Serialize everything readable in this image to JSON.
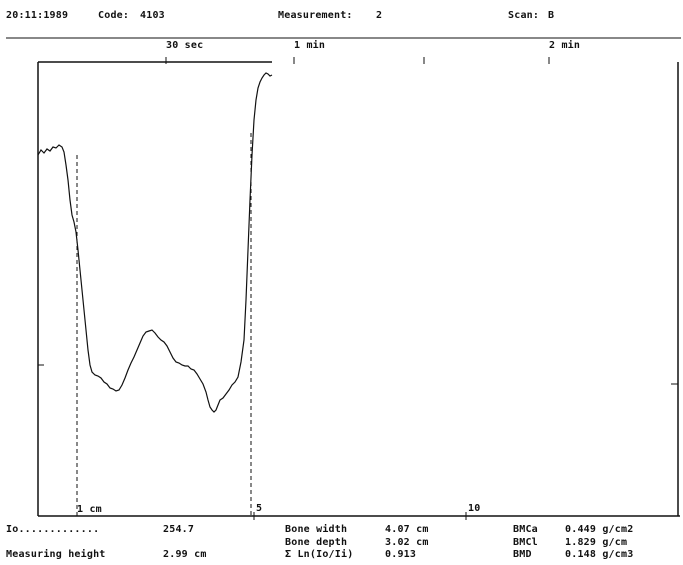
{
  "header": {
    "date": "20:11:1989",
    "code_label": "Code:",
    "code_value": "4103",
    "measurement_label": "Measurement:",
    "measurement_value": "2",
    "scan_label": "Scan:",
    "scan_value": "B"
  },
  "time_axis": {
    "labels": [
      "30 sec",
      "1 min",
      "2 min"
    ]
  },
  "distance_axis": {
    "labels": [
      "1 cm",
      "5",
      "10"
    ]
  },
  "results": {
    "io_label": "Io.............",
    "io_value": "254.7",
    "measuring_height_label": "Measuring height",
    "measuring_height_value": "2.99 cm",
    "bone_width_label": "Bone width",
    "bone_width_value": "4.07 cm",
    "bone_depth_label": "Bone depth",
    "bone_depth_value": "3.02 cm",
    "sum_ln_label": "Σ Ln(Io/Ii)",
    "sum_ln_value": "0.913",
    "bmca_label": "BMCa",
    "bmca_value": "0.449 g/cm2",
    "bmcl_label": "BMCl",
    "bmcl_value": "1.829 g/cm",
    "bmd_label": "BMD",
    "bmd_value": "0.148 g/cm3"
  },
  "colors": {
    "ink": "#111111",
    "background": "#ffffff"
  }
}
